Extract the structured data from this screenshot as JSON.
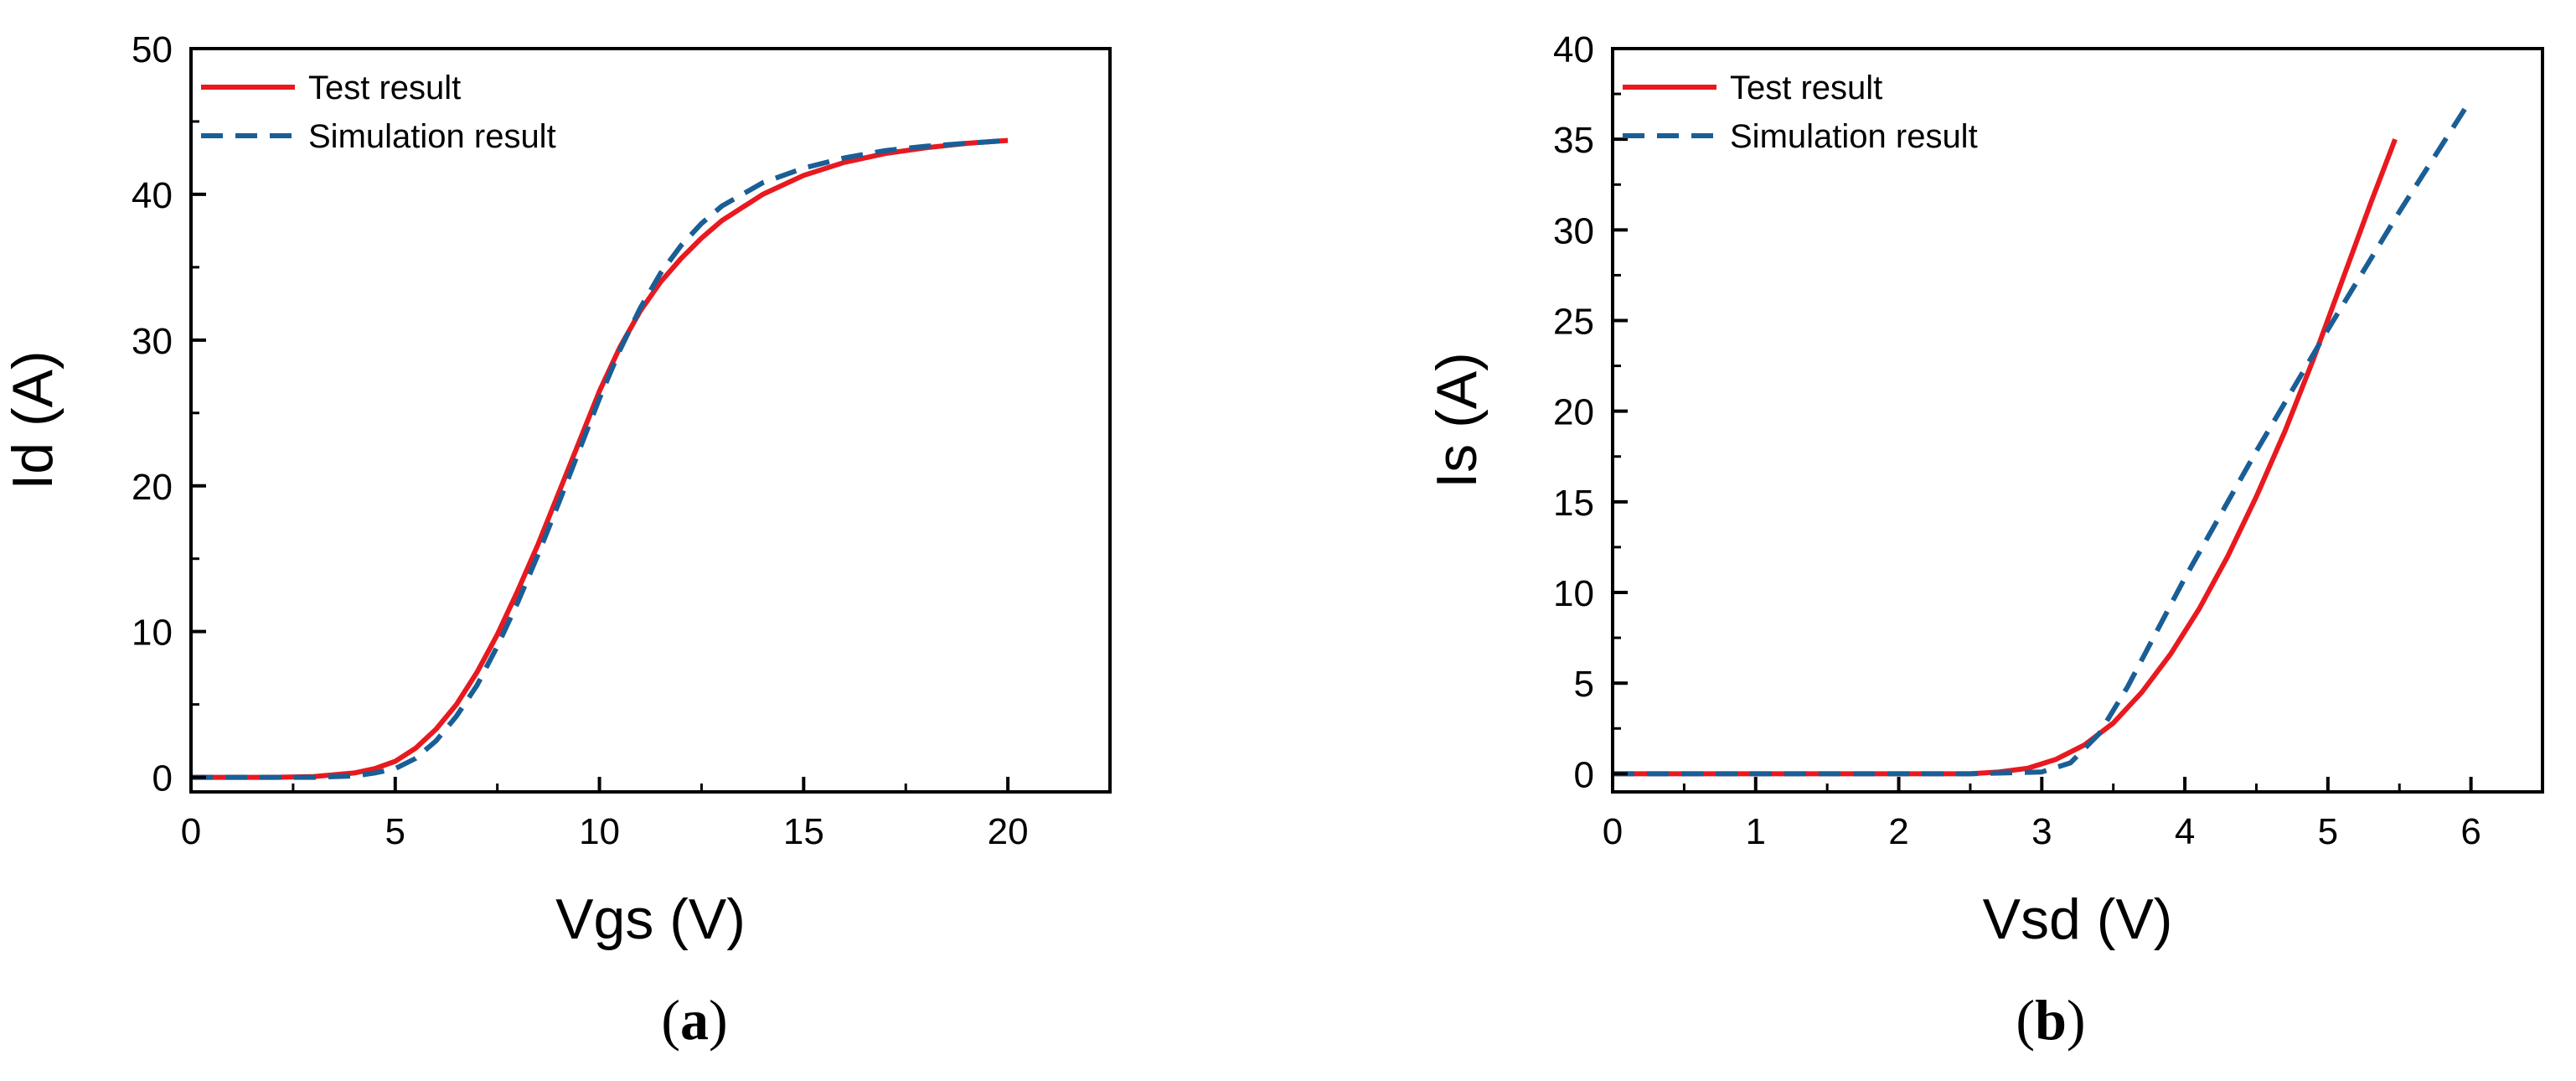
{
  "chart_data": [
    {
      "type": "line",
      "caption_letter": "a",
      "xlabel": "Vgs (V)",
      "ylabel": "Id (A)",
      "xlim": [
        0,
        22.5
      ],
      "ylim": [
        -1,
        50
      ],
      "xticks": [
        0,
        5,
        10,
        15,
        20
      ],
      "yticks": [
        0,
        10,
        20,
        30,
        40,
        50
      ],
      "grid": false,
      "legend_position": "top-left",
      "series": [
        {
          "name": "Test result",
          "color": "#e8191f",
          "dash": "solid",
          "x": [
            0,
            1,
            2,
            3,
            4,
            4.5,
            5,
            5.5,
            6,
            6.5,
            7,
            7.5,
            8,
            8.5,
            9,
            9.5,
            10,
            10.5,
            11,
            11.5,
            12,
            12.5,
            13,
            14,
            15,
            16,
            17,
            18,
            19,
            20
          ],
          "y": [
            0,
            0,
            0,
            0.05,
            0.3,
            0.6,
            1.1,
            2,
            3.3,
            5,
            7.2,
            9.8,
            12.8,
            16,
            19.5,
            23,
            26.5,
            29.5,
            32,
            34,
            35.6,
            37,
            38.2,
            40,
            41.3,
            42.2,
            42.8,
            43.2,
            43.5,
            43.7
          ]
        },
        {
          "name": "Simulation result",
          "color": "#1a5e96",
          "dash": "dashed",
          "x": [
            0,
            1,
            2,
            3,
            4,
            4.5,
            5,
            5.5,
            6,
            6.5,
            7,
            7.5,
            8,
            8.5,
            9,
            9.5,
            10,
            10.5,
            11,
            11.5,
            12,
            12.5,
            13,
            14,
            15,
            16,
            17,
            18,
            19,
            20
          ],
          "y": [
            0,
            0,
            0,
            0,
            0.1,
            0.3,
            0.6,
            1.3,
            2.5,
            4.2,
            6.3,
            9,
            12,
            15.3,
            18.8,
            22.4,
            26,
            29.3,
            32.2,
            34.6,
            36.5,
            38,
            39.2,
            40.8,
            41.8,
            42.5,
            43,
            43.3,
            43.5,
            43.7
          ]
        }
      ]
    },
    {
      "type": "line",
      "caption_letter": "b",
      "xlabel": "Vsd (V)",
      "ylabel": "Is (A)",
      "xlim": [
        0,
        6.5
      ],
      "ylim": [
        -1,
        40
      ],
      "xticks": [
        0,
        1,
        2,
        3,
        4,
        5,
        6
      ],
      "yticks": [
        0,
        5,
        10,
        15,
        20,
        25,
        30,
        35,
        40
      ],
      "grid": false,
      "legend_position": "top-left",
      "series": [
        {
          "name": "Test result",
          "color": "#e8191f",
          "dash": "solid",
          "x": [
            0,
            0.5,
            1,
            1.5,
            2,
            2.5,
            2.7,
            2.9,
            3.1,
            3.3,
            3.5,
            3.7,
            3.9,
            4.1,
            4.3,
            4.5,
            4.7,
            4.9,
            5.1,
            5.3,
            5.47
          ],
          "y": [
            0,
            0,
            0,
            0,
            0,
            0,
            0.1,
            0.3,
            0.8,
            1.6,
            2.8,
            4.5,
            6.6,
            9.1,
            12,
            15.3,
            18.9,
            22.9,
            27.2,
            31.5,
            35
          ]
        },
        {
          "name": "Simulation result",
          "color": "#1a5e96",
          "dash": "dashed",
          "x": [
            0,
            0.5,
            1,
            1.5,
            2,
            2.5,
            3,
            3.2,
            3.4,
            3.6,
            3.8,
            4,
            4.5,
            5,
            5.5,
            6
          ],
          "y": [
            0,
            0,
            0,
            0,
            0,
            0,
            0.1,
            0.6,
            2.2,
            4.8,
            7.8,
            10.8,
            17.8,
            24.5,
            31,
            37.2
          ]
        }
      ]
    }
  ]
}
